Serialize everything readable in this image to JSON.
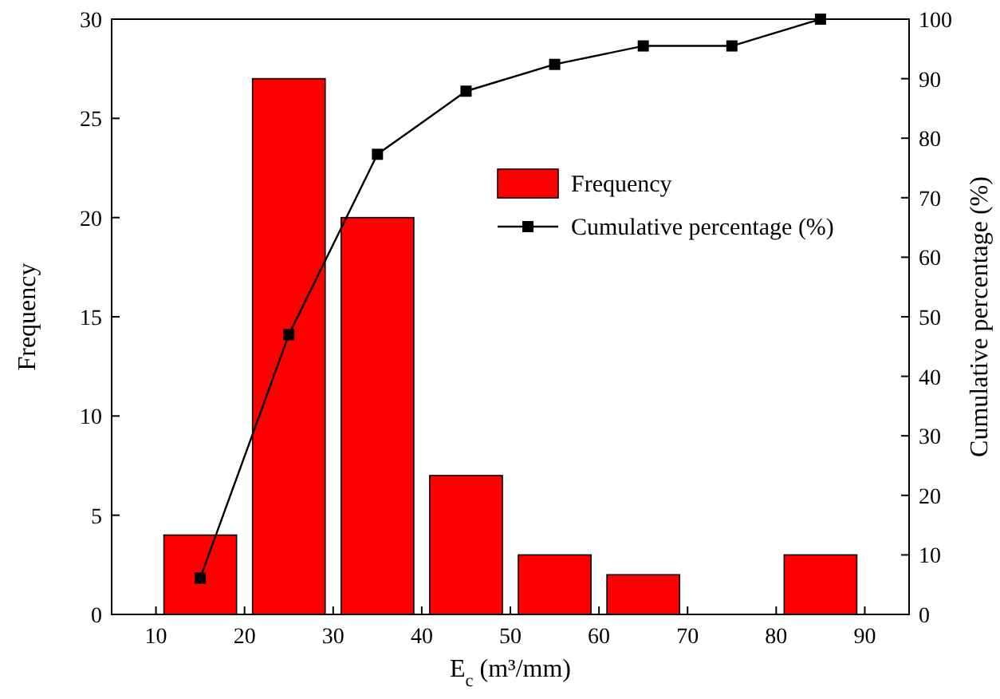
{
  "chart_data": {
    "type": "bar",
    "xlabel": "E$_{c}$ (m³/mm)",
    "ylabel": "Frequency",
    "y2label": "Cumulative percentage (%)",
    "x": [
      15,
      25,
      35,
      45,
      55,
      65,
      75,
      85
    ],
    "series": [
      {
        "name": "Frequency",
        "color": "#ff0000",
        "values": [
          4,
          27,
          20,
          7,
          3,
          2,
          0,
          3
        ]
      },
      {
        "type": "line",
        "name": "Cumulative percentage (%)",
        "color": "#000000",
        "axis": "y2",
        "marker": "square",
        "values": [
          6.1,
          47,
          77.3,
          87.9,
          92.4,
          95.5,
          95.5,
          100
        ]
      }
    ],
    "xlim": [
      5,
      95
    ],
    "xticks": [
      10,
      20,
      30,
      40,
      50,
      60,
      70,
      80,
      90
    ],
    "ylim": [
      0,
      30
    ],
    "yticks": [
      0,
      5,
      10,
      15,
      20,
      25,
      30
    ],
    "y2lim": [
      0,
      100
    ],
    "y2ticks": [
      0,
      10,
      20,
      30,
      40,
      50,
      60,
      70,
      80,
      90,
      100
    ],
    "legend": "top right"
  }
}
